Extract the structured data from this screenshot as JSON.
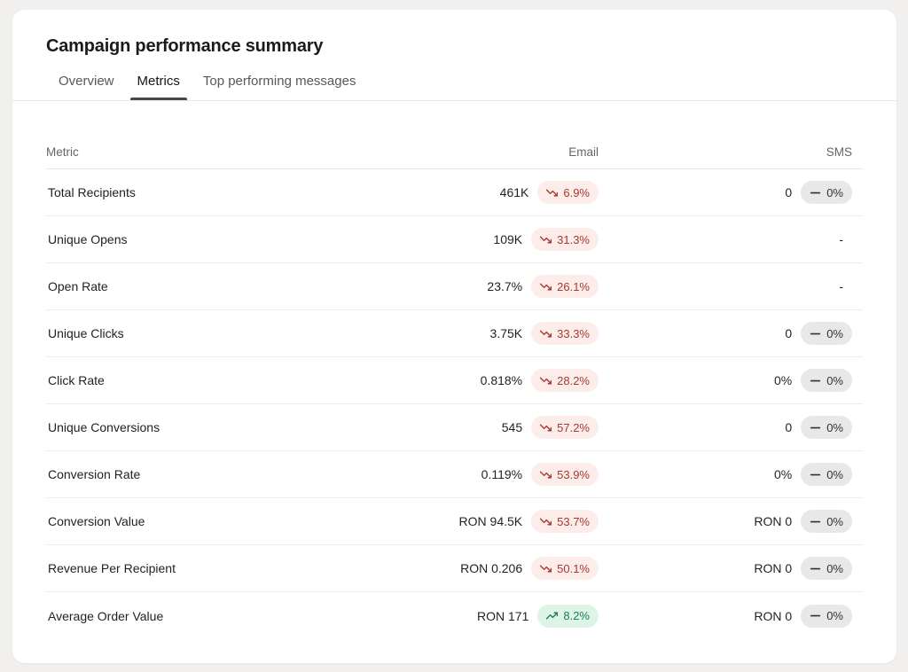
{
  "card": {
    "title": "Campaign performance summary",
    "tabs": [
      {
        "label": "Overview",
        "active": false
      },
      {
        "label": "Metrics",
        "active": true
      },
      {
        "label": "Top performing messages",
        "active": false
      }
    ]
  },
  "table": {
    "columns": [
      "Metric",
      "Email",
      "SMS"
    ],
    "rows": [
      {
        "metric": "Total Recipients",
        "email": {
          "value": "461K",
          "badge": {
            "trend": "down",
            "label": "6.9%"
          }
        },
        "sms": {
          "value": "0",
          "badge": {
            "trend": "flat",
            "label": "0%"
          }
        }
      },
      {
        "metric": "Unique Opens",
        "email": {
          "value": "109K",
          "badge": {
            "trend": "down",
            "label": "31.3%"
          }
        },
        "sms": {
          "value": "-",
          "badge": null
        }
      },
      {
        "metric": "Open Rate",
        "email": {
          "value": "23.7%",
          "badge": {
            "trend": "down",
            "label": "26.1%"
          }
        },
        "sms": {
          "value": "-",
          "badge": null
        }
      },
      {
        "metric": "Unique Clicks",
        "email": {
          "value": "3.75K",
          "badge": {
            "trend": "down",
            "label": "33.3%"
          }
        },
        "sms": {
          "value": "0",
          "badge": {
            "trend": "flat",
            "label": "0%"
          }
        }
      },
      {
        "metric": "Click Rate",
        "email": {
          "value": "0.818%",
          "badge": {
            "trend": "down",
            "label": "28.2%"
          }
        },
        "sms": {
          "value": "0%",
          "badge": {
            "trend": "flat",
            "label": "0%"
          }
        }
      },
      {
        "metric": "Unique Conversions",
        "email": {
          "value": "545",
          "badge": {
            "trend": "down",
            "label": "57.2%"
          }
        },
        "sms": {
          "value": "0",
          "badge": {
            "trend": "flat",
            "label": "0%"
          }
        }
      },
      {
        "metric": "Conversion Rate",
        "email": {
          "value": "0.119%",
          "badge": {
            "trend": "down",
            "label": "53.9%"
          }
        },
        "sms": {
          "value": "0%",
          "badge": {
            "trend": "flat",
            "label": "0%"
          }
        }
      },
      {
        "metric": "Conversion Value",
        "email": {
          "value": "RON 94.5K",
          "badge": {
            "trend": "down",
            "label": "53.7%"
          }
        },
        "sms": {
          "value": "RON 0",
          "badge": {
            "trend": "flat",
            "label": "0%"
          }
        }
      },
      {
        "metric": "Revenue Per Recipient",
        "email": {
          "value": "RON 0.206",
          "badge": {
            "trend": "down",
            "label": "50.1%"
          }
        },
        "sms": {
          "value": "RON 0",
          "badge": {
            "trend": "flat",
            "label": "0%"
          }
        }
      },
      {
        "metric": "Average Order Value",
        "email": {
          "value": "RON 171",
          "badge": {
            "trend": "up",
            "label": "8.2%"
          }
        },
        "sms": {
          "value": "RON 0",
          "badge": {
            "trend": "flat",
            "label": "0%"
          }
        }
      }
    ]
  },
  "icons": {
    "down": "trending-down-icon",
    "up": "trending-up-icon",
    "flat": "flat-dash-icon"
  },
  "colors": {
    "page_background": "#f1f0ee",
    "card_background": "#ffffff",
    "negative_text": "#a8392f",
    "negative_background": "#fcedeb",
    "positive_text": "#1e7f4c",
    "positive_background": "#def4e6",
    "neutral_text": "#2f3236",
    "neutral_background": "#e9e8e6",
    "active_tab_underline": "#47484a"
  }
}
